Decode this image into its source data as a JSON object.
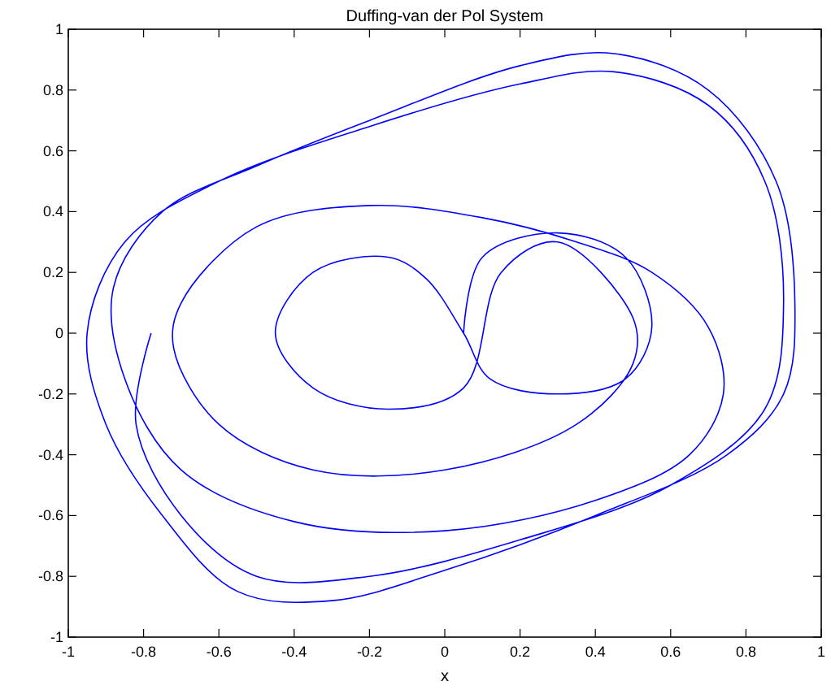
{
  "chart_data": {
    "type": "line",
    "title": "Duffing-van der Pol System",
    "xlabel": "x",
    "xlim": [
      -1,
      1
    ],
    "ylim": [
      -1,
      1
    ],
    "xticks": [
      -1,
      -0.8,
      -0.6,
      -0.4,
      -0.2,
      0,
      0.2,
      0.4,
      0.6,
      0.8,
      1
    ],
    "yticks": [
      -1,
      -0.8,
      -0.6,
      -0.4,
      -0.2,
      0,
      0.2,
      0.4,
      0.6,
      0.8,
      1
    ],
    "grid": false,
    "line_style": "solid",
    "marker": "none",
    "series": [
      {
        "color": "#0000ff",
        "x": [
          0.05,
          0.1,
          0.3,
          0.48,
          0.55,
          0.48,
          0.3,
          0.12,
          0.05,
          -0.05,
          -0.15,
          -0.35,
          -0.45,
          -0.35,
          -0.15,
          0.05,
          0.15,
          0.3,
          0.5,
          0.5,
          0.35,
          0,
          -0.35,
          -0.6,
          -0.72,
          -0.7,
          -0.5,
          -0.2,
          0.1,
          0.35,
          0.55,
          0.7,
          0.74,
          0.65,
          0.4,
          0,
          -0.4,
          -0.7,
          -0.85,
          -0.88,
          -0.75,
          -0.5,
          -0.2,
          0.2,
          0.45,
          0.7,
          0.88,
          0.93,
          0.9,
          0.75,
          0.4,
          0,
          -0.3,
          -0.55,
          -0.75,
          -0.9,
          -0.95,
          -0.85,
          -0.6,
          -0.2,
          0.2,
          0.45,
          0.7,
          0.85,
          0.9,
          0.85,
          0.6,
          0.2,
          -0.2,
          -0.5,
          -0.7,
          -0.82,
          -0.78
        ],
        "values": [
          0,
          0.25,
          0.33,
          0.25,
          0.02,
          -0.15,
          -0.2,
          -0.15,
          0,
          0.18,
          0.25,
          0.2,
          0,
          -0.18,
          -0.25,
          -0.18,
          0.2,
          0.3,
          0.05,
          -0.1,
          -0.3,
          -0.45,
          -0.45,
          -0.3,
          -0.05,
          0.1,
          0.35,
          0.42,
          0.38,
          0.3,
          0.2,
          0.02,
          -0.2,
          -0.4,
          -0.55,
          -0.65,
          -0.62,
          -0.45,
          -0.15,
          0.15,
          0.4,
          0.55,
          0.7,
          0.88,
          0.92,
          0.8,
          0.5,
          0.1,
          -0.2,
          -0.4,
          -0.6,
          -0.78,
          -0.88,
          -0.85,
          -0.6,
          -0.3,
          0,
          0.3,
          0.5,
          0.68,
          0.82,
          0.86,
          0.75,
          0.5,
          0.1,
          -0.25,
          -0.5,
          -0.68,
          -0.8,
          -0.8,
          -0.6,
          -0.3,
          0
        ]
      }
    ]
  }
}
